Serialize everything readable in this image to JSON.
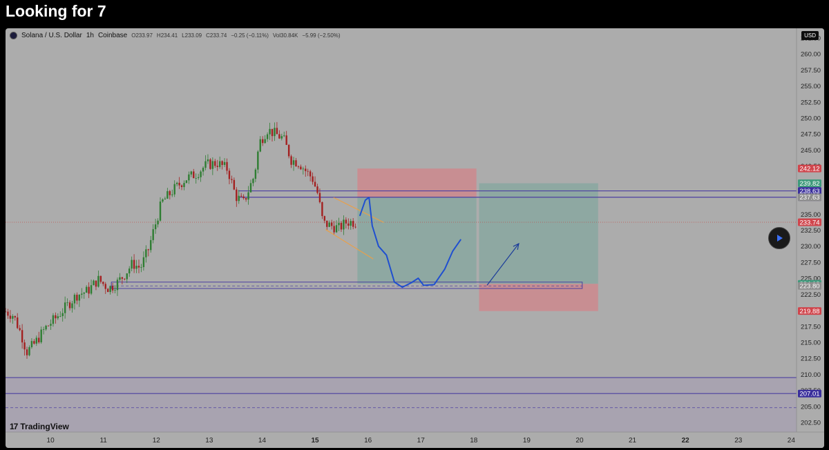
{
  "post_title": "Looking for 7",
  "header": {
    "symbol": "Solana / U.S. Dollar",
    "interval": "1h",
    "exchange": "Coinbase",
    "open": "O233.97",
    "high": "H234.41",
    "low": "L233.09",
    "close": "C233.74",
    "change": "−0.25 (−0.11%)",
    "volume": "Vol30.84K",
    "volume_change": "−5.99 (−2.50%)"
  },
  "currency_label": "USD",
  "watermark": "TradingView",
  "colors": {
    "background": "#acacac",
    "bull_candle": "#2e7d32",
    "bear_candle": "#a32020",
    "stop_zone": "#c88e92",
    "target_zone": "#8ea8a2",
    "level_line": "#4b3fa0",
    "drawing": "#1f4fd0",
    "channel": "#e8a04a"
  },
  "chart_data": {
    "type": "candlestick",
    "symbol": "Solana / U.S. Dollar",
    "interval": "1h",
    "ylim": [
      201,
      264
    ],
    "y_ticks": [
      262.5,
      260,
      257.5,
      255,
      252.5,
      250,
      247.5,
      245,
      242.5,
      240,
      237.5,
      235,
      232.5,
      230,
      227.5,
      225,
      222.5,
      220,
      217.5,
      215,
      212.5,
      210,
      207.5,
      205,
      202.5
    ],
    "y_tick_labels": [
      "262.50",
      "260.00",
      "257.50",
      "255.00",
      "252.50",
      "250.00",
      "247.50",
      "245.00",
      "242.50",
      "240.00",
      "237.50",
      "235.00",
      "232.50",
      "230.00",
      "227.50",
      "225.00",
      "222.50",
      "220.00",
      "217.50",
      "215.00",
      "212.50",
      "210.00",
      "207.50",
      "205.00",
      "202.50"
    ],
    "xlim": [
      9.15,
      24.1
    ],
    "x_ticks": [
      10,
      11,
      12,
      13,
      14,
      15,
      16,
      17,
      18,
      19,
      20,
      21,
      22,
      23,
      24
    ],
    "x_tick_labels": [
      "10",
      "11",
      "12",
      "13",
      "14",
      "15",
      "16",
      "17",
      "18",
      "19",
      "20",
      "21",
      "22",
      "23",
      "24"
    ],
    "bold_x_ticks": [
      "15",
      "22"
    ],
    "price_path": [
      [
        9.15,
        219.8
      ],
      [
        9.3,
        219.2
      ],
      [
        9.45,
        216.2
      ],
      [
        9.55,
        213.5
      ],
      [
        9.7,
        214.8
      ],
      [
        9.9,
        217.2
      ],
      [
        10.1,
        218.8
      ],
      [
        10.3,
        220.6
      ],
      [
        10.5,
        222.4
      ],
      [
        10.7,
        223.0
      ],
      [
        10.9,
        224.8
      ],
      [
        11.1,
        223.4
      ],
      [
        11.25,
        224.2
      ],
      [
        11.4,
        225.6
      ],
      [
        11.55,
        227.3
      ],
      [
        11.7,
        226.6
      ],
      [
        11.85,
        229.5
      ],
      [
        11.95,
        232.5
      ],
      [
        12.1,
        236.8
      ],
      [
        12.35,
        239.0
      ],
      [
        12.55,
        240.5
      ],
      [
        12.75,
        241.3
      ],
      [
        12.95,
        242.7
      ],
      [
        13.15,
        243.0
      ],
      [
        13.35,
        242.0
      ],
      [
        13.5,
        237.8
      ],
      [
        13.65,
        236.8
      ],
      [
        13.85,
        241.0
      ],
      [
        13.95,
        246.2
      ],
      [
        14.1,
        248.2
      ],
      [
        14.25,
        247.5
      ],
      [
        14.4,
        246.8
      ],
      [
        14.55,
        243.5
      ],
      [
        14.7,
        243.0
      ],
      [
        14.85,
        241.5
      ],
      [
        14.95,
        240.6
      ],
      [
        15.05,
        238.2
      ],
      [
        15.15,
        233.6
      ],
      [
        15.3,
        233.2
      ],
      [
        15.45,
        232.8
      ],
      [
        15.6,
        233.8
      ],
      [
        15.78,
        233.74
      ]
    ],
    "last_close": 233.74,
    "price_labels": [
      {
        "value": 242.12,
        "label": "242.12",
        "kind": "stop"
      },
      {
        "value": 239.82,
        "label": "239.82",
        "kind": "target"
      },
      {
        "value": 238.63,
        "label": "238.63",
        "kind": "level"
      },
      {
        "value": 237.64,
        "label": "237.64",
        "kind": "level"
      },
      {
        "value": 237.63,
        "label": "237.63",
        "kind": "neutral"
      },
      {
        "value": 233.74,
        "label": "233.74",
        "kind": "current"
      },
      {
        "value": 224.13,
        "label": "224.13",
        "kind": "target"
      },
      {
        "value": 223.8,
        "label": "223.80",
        "kind": "neutral"
      },
      {
        "value": 219.88,
        "label": "219.88",
        "kind": "stop"
      },
      {
        "value": 207.01,
        "label": "207.01",
        "kind": "level"
      }
    ],
    "horizontal_lines": [
      {
        "value": 238.63,
        "x_from": 13.55,
        "x_to": 24.1
      },
      {
        "value": 237.64,
        "x_from": 13.55,
        "x_to": 24.1
      },
      {
        "value": 209.5,
        "x_from": 9.15,
        "x_to": 24.1
      },
      {
        "value": 207.01,
        "x_from": 9.15,
        "x_to": 24.1
      }
    ],
    "dashed_lines": [
      {
        "value": 204.8,
        "x_from": 9.15,
        "x_to": 24.1
      },
      {
        "value": 223.8,
        "x_from": 11.15,
        "x_to": 20.05
      }
    ],
    "zones": [
      {
        "kind": "stop",
        "x_from": 15.8,
        "x_to": 18.05,
        "y_from": 237.64,
        "y_to": 242.12
      },
      {
        "kind": "target",
        "x_from": 15.8,
        "x_to": 18.05,
        "y_from": 224.13,
        "y_to": 237.64
      },
      {
        "kind": "target",
        "x_from": 18.1,
        "x_to": 20.35,
        "y_from": 224.13,
        "y_to": 239.82
      },
      {
        "kind": "stop",
        "x_from": 18.1,
        "x_to": 20.35,
        "y_from": 219.88,
        "y_to": 224.13
      },
      {
        "kind": "support",
        "x_from": 11.15,
        "x_to": 20.05,
        "y_from": 223.4,
        "y_to": 224.4
      }
    ],
    "channel_lines": [
      [
        [
          15.35,
          237.6
        ],
        [
          16.3,
          233.7
        ]
      ],
      [
        [
          15.2,
          232.6
        ],
        [
          16.1,
          228.0
        ]
      ]
    ],
    "projection_path": [
      [
        15.85,
        234.8
      ],
      [
        15.95,
        237.2
      ],
      [
        16.02,
        237.6
      ],
      [
        16.08,
        233.2
      ],
      [
        16.2,
        230.0
      ],
      [
        16.35,
        228.6
      ],
      [
        16.5,
        224.4
      ],
      [
        16.65,
        223.6
      ],
      [
        16.82,
        224.3
      ],
      [
        16.95,
        225.0
      ],
      [
        17.05,
        223.9
      ],
      [
        17.25,
        224.0
      ],
      [
        17.45,
        226.4
      ],
      [
        17.6,
        229.2
      ],
      [
        17.75,
        231.0
      ]
    ],
    "projection_arrow": [
      [
        18.25,
        223.9
      ],
      [
        18.85,
        230.4
      ]
    ]
  }
}
